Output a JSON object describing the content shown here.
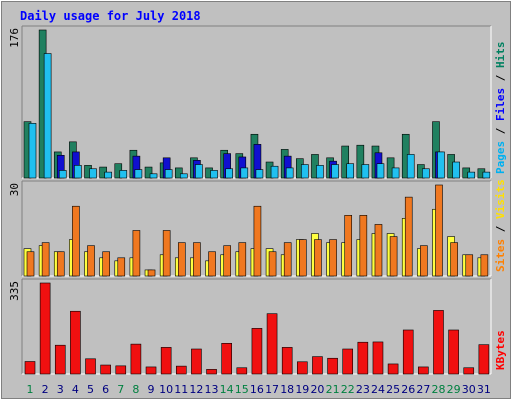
{
  "chart_data": {
    "type": "bar",
    "title": "Daily usage for July 2018",
    "categories": [
      "1",
      "2",
      "3",
      "4",
      "5",
      "6",
      "7",
      "8",
      "9",
      "10",
      "11",
      "12",
      "13",
      "14",
      "15",
      "16",
      "17",
      "18",
      "19",
      "20",
      "21",
      "22",
      "23",
      "24",
      "25",
      "26",
      "27",
      "28",
      "29",
      "30",
      "31"
    ],
    "weekend_days": [
      "1",
      "7",
      "8",
      "14",
      "15",
      "21",
      "22",
      "28",
      "29"
    ],
    "panels": [
      {
        "name": "hits-files-pages",
        "ymax_label": "176",
        "ylim": [
          0,
          176
        ],
        "side_labels": [
          {
            "text": "Pages",
            "color": "#00b0f0"
          },
          {
            "text": " / ",
            "color": "#000000"
          },
          {
            "text": "Files",
            "color": "#0000ff"
          },
          {
            "text": " / ",
            "color": "#000000"
          },
          {
            "text": "Hits",
            "color": "#008060"
          }
        ],
        "series": [
          {
            "name": "Hits",
            "color": "#208060",
            "values": [
              67,
              176,
              31,
              43,
              15,
              13,
              17,
              33,
              13,
              18,
              12,
              24,
              12,
              33,
              29,
              52,
              19,
              34,
              23,
              28,
              24,
              38,
              39,
              38,
              24,
              52,
              16,
              67,
              28,
              12,
              11
            ]
          },
          {
            "name": "Files",
            "color": "#1010d0",
            "values": [
              0,
              0,
              27,
              31,
              0,
              0,
              0,
              26,
              0,
              24,
              0,
              21,
              0,
              29,
              25,
              40,
              0,
              26,
              0,
              0,
              20,
              0,
              0,
              30,
              0,
              0,
              0,
              31,
              0,
              0,
              0
            ]
          },
          {
            "name": "Pages",
            "color": "#20c0f0",
            "values": [
              65,
              148,
              9,
              15,
              11,
              7,
              9,
              10,
              5,
              10,
              5,
              16,
              9,
              11,
              12,
              10,
              14,
              12,
              16,
              15,
              16,
              17,
              16,
              17,
              12,
              28,
              11,
              31,
              19,
              7,
              7
            ]
          }
        ]
      },
      {
        "name": "visits-sites",
        "ymax_label": "30",
        "ylim": [
          0,
          30
        ],
        "side_labels": [
          {
            "text": "Sites",
            "color": "#ff8000"
          },
          {
            "text": " / ",
            "color": "#000000"
          },
          {
            "text": "Visits",
            "color": "#ffe000"
          }
        ],
        "series": [
          {
            "name": "Visits",
            "color": "#ffff40",
            "values": [
              9,
              10,
              8,
              12,
              8,
              6,
              5,
              6,
              2,
              7,
              6,
              6,
              5,
              7,
              8,
              9,
              9,
              7,
              12,
              14,
              11,
              11,
              12,
              14,
              14,
              19,
              9,
              22,
              13,
              7,
              6
            ]
          },
          {
            "name": "Sites",
            "color": "#f07820",
            "values": [
              8,
              11,
              8,
              23,
              10,
              8,
              6,
              15,
              2,
              15,
              11,
              11,
              8,
              10,
              11,
              23,
              8,
              11,
              12,
              12,
              12,
              20,
              20,
              17,
              13,
              26,
              10,
              30,
              11,
              7,
              7
            ]
          }
        ]
      },
      {
        "name": "kbytes",
        "ymax_label": "335",
        "ylim": [
          0,
          335
        ],
        "side_labels": [
          {
            "text": "KBytes",
            "color": "#ff0000"
          }
        ],
        "series": [
          {
            "name": "KBytes",
            "color": "#f01010",
            "values": [
              46,
              335,
              106,
              231,
              56,
              33,
              30,
              110,
              26,
              98,
              29,
              92,
              17,
              113,
              23,
              168,
              222,
              98,
              45,
              64,
              58,
              92,
              117,
              118,
              37,
              162,
              26,
              234,
              162,
              23,
              108
            ]
          }
        ]
      }
    ]
  }
}
